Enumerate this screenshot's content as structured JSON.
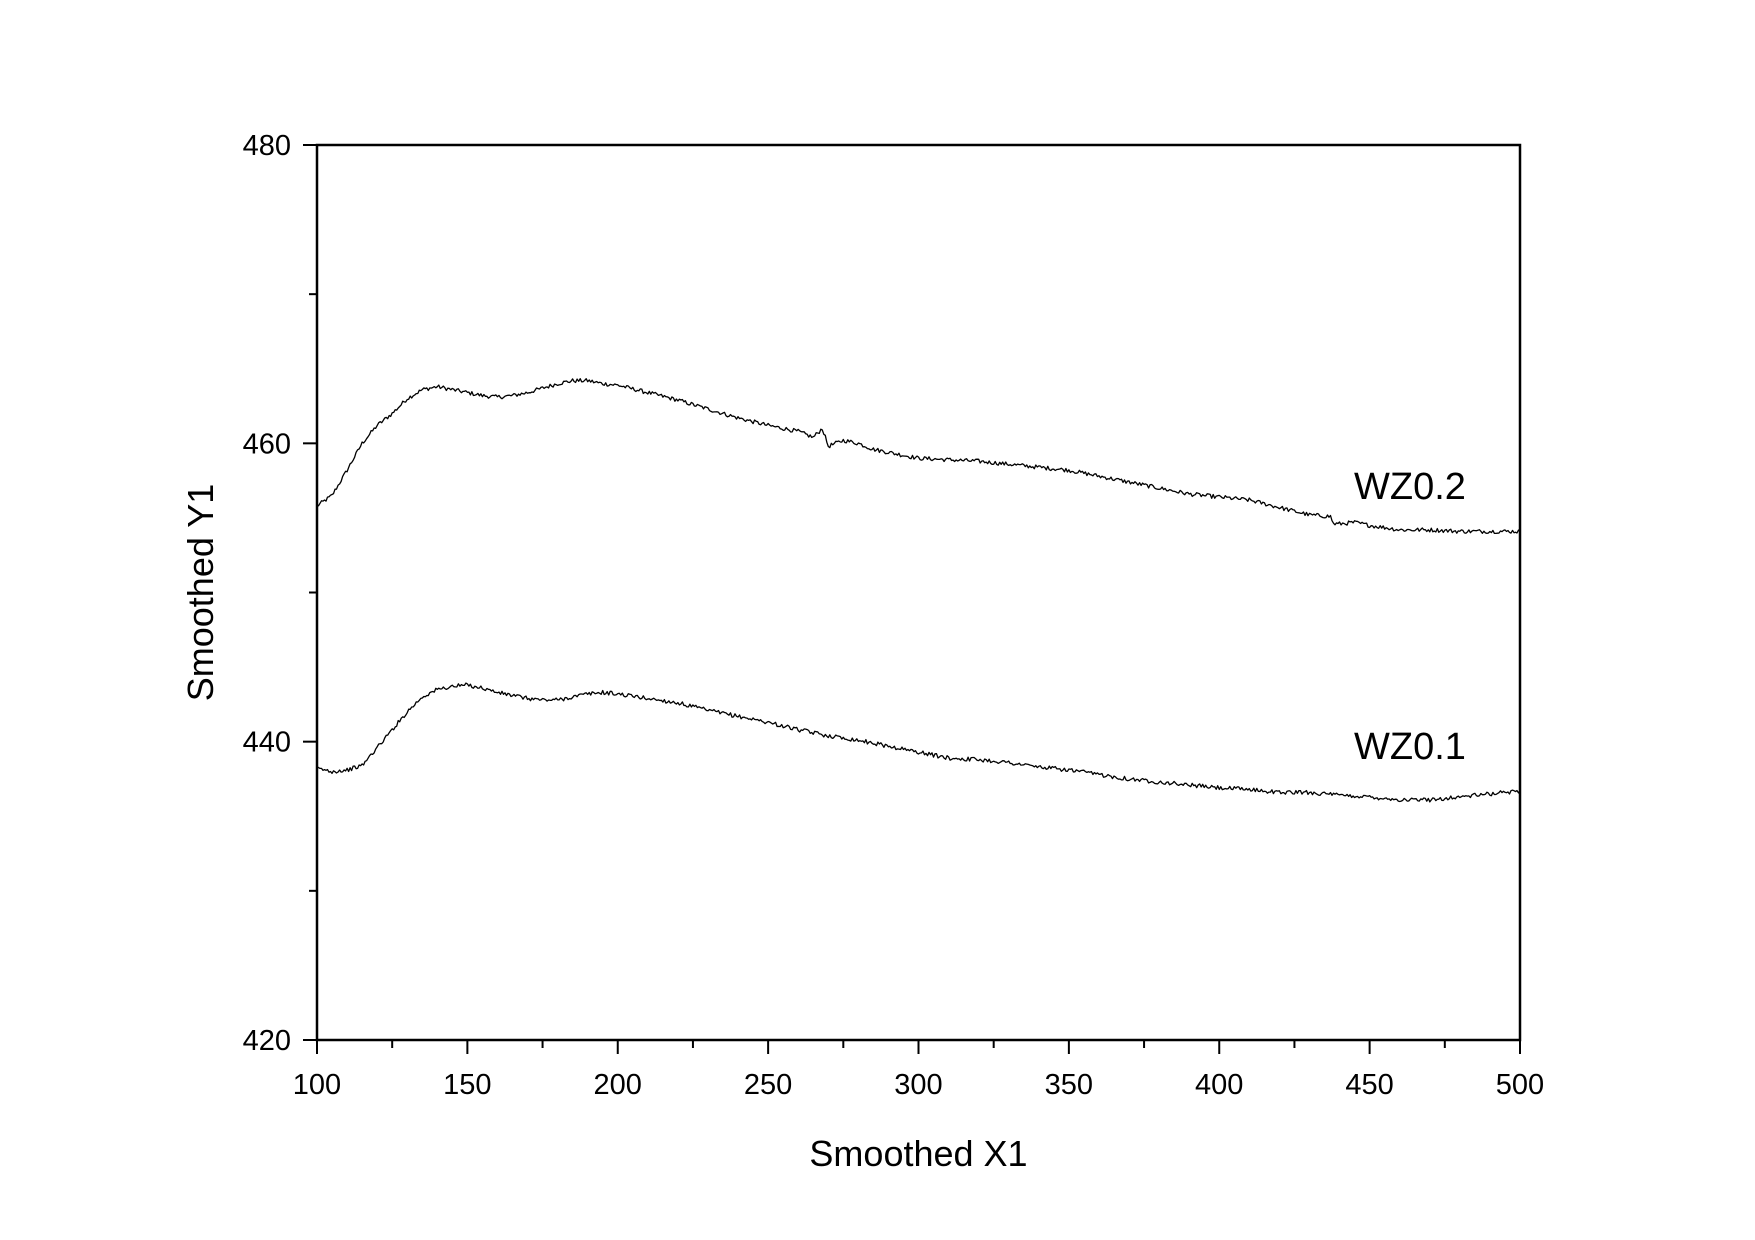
{
  "chart_data": {
    "type": "line",
    "title": "",
    "xlabel": "Smoothed X1",
    "ylabel": "Smoothed Y1",
    "xlim": [
      100,
      500
    ],
    "ylim": [
      420,
      480
    ],
    "x_ticks": [
      100,
      150,
      200,
      250,
      300,
      350,
      400,
      450,
      500
    ],
    "y_ticks": [
      420,
      440,
      460,
      480
    ],
    "x_minor_step": 25,
    "y_minor_step": 10,
    "grid": false,
    "legend": "none",
    "line_color": "#000000",
    "series": [
      {
        "name": "WZ0.2",
        "x": [
          100,
          105,
          110,
          115,
          120,
          125,
          130,
          135,
          140,
          145,
          150,
          155,
          160,
          165,
          170,
          175,
          180,
          185,
          190,
          195,
          200,
          210,
          220,
          230,
          240,
          250,
          260,
          265,
          268,
          270,
          275,
          280,
          285,
          290,
          300,
          310,
          320,
          330,
          340,
          350,
          360,
          370,
          380,
          390,
          400,
          410,
          420,
          430,
          437,
          438,
          440,
          445,
          450,
          460,
          470,
          480,
          490,
          500
        ],
        "values": [
          455.8,
          456.5,
          458.2,
          460.0,
          461.2,
          462.0,
          463.0,
          463.6,
          463.8,
          463.6,
          463.4,
          463.2,
          463.1,
          463.2,
          463.4,
          463.7,
          464.0,
          464.2,
          464.2,
          464.0,
          463.9,
          463.4,
          462.9,
          462.3,
          461.7,
          461.2,
          460.8,
          460.4,
          461.0,
          459.8,
          460.2,
          460.0,
          459.6,
          459.4,
          459.0,
          458.9,
          458.8,
          458.6,
          458.4,
          458.2,
          457.8,
          457.4,
          457.0,
          456.6,
          456.4,
          456.2,
          455.7,
          455.2,
          455.1,
          454.6,
          454.6,
          454.7,
          454.5,
          454.2,
          454.2,
          454.1,
          454.1,
          454.1
        ]
      },
      {
        "name": "WZ0.1",
        "x": [
          100,
          105,
          110,
          115,
          120,
          125,
          130,
          135,
          140,
          145,
          150,
          155,
          160,
          165,
          170,
          175,
          180,
          185,
          190,
          195,
          200,
          210,
          220,
          230,
          240,
          250,
          260,
          270,
          280,
          290,
          300,
          310,
          320,
          330,
          340,
          350,
          360,
          370,
          380,
          390,
          400,
          410,
          420,
          430,
          440,
          450,
          460,
          470,
          480,
          490,
          500
        ],
        "values": [
          438.2,
          438.0,
          438.1,
          438.4,
          439.6,
          440.8,
          442.0,
          443.0,
          443.5,
          443.7,
          443.8,
          443.6,
          443.3,
          443.1,
          442.9,
          442.8,
          442.8,
          443.0,
          443.2,
          443.3,
          443.2,
          442.9,
          442.6,
          442.1,
          441.7,
          441.3,
          440.8,
          440.4,
          440.1,
          439.7,
          439.3,
          438.9,
          438.8,
          438.6,
          438.3,
          438.1,
          437.8,
          437.5,
          437.3,
          437.1,
          436.9,
          436.8,
          436.6,
          436.6,
          436.4,
          436.3,
          436.1,
          436.1,
          436.3,
          436.5,
          436.7
        ]
      }
    ]
  }
}
